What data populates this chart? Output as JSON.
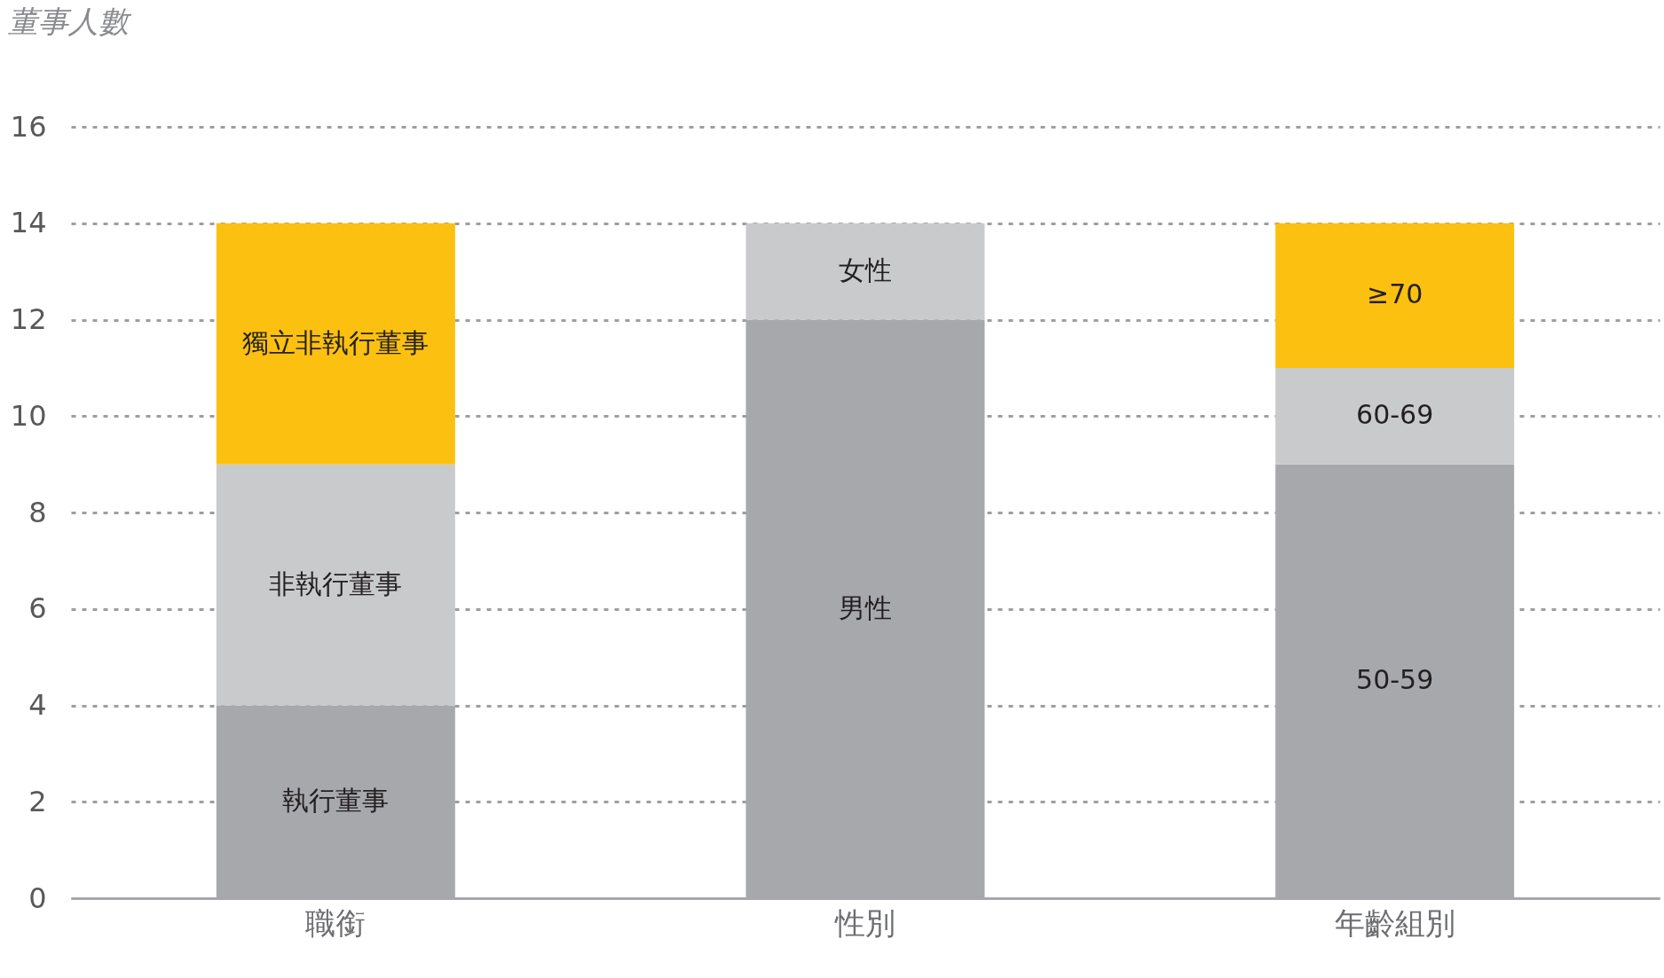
{
  "chart_data": {
    "type": "bar",
    "stacked": true,
    "ylabel": "董事人數",
    "categories": [
      "職銜",
      "性別",
      "年齡組別"
    ],
    "series": [
      {
        "name": "執行董事",
        "color": "#a7a8ab",
        "values": [
          4,
          null,
          null
        ]
      },
      {
        "name": "非執行董事",
        "color": "#c9cacc",
        "values": [
          5,
          null,
          null
        ]
      },
      {
        "name": "獨立非執行董事",
        "color": "#fcc010",
        "values": [
          5,
          null,
          null
        ]
      },
      {
        "name": "男性",
        "color": "#a7a8ab",
        "values": [
          null,
          12,
          null
        ]
      },
      {
        "name": "女性",
        "color": "#c9cacc",
        "values": [
          null,
          2,
          null
        ]
      },
      {
        "name": "50-59",
        "color": "#a7a8ab",
        "values": [
          null,
          null,
          9
        ]
      },
      {
        "name": "60-69",
        "color": "#c9cacc",
        "values": [
          null,
          null,
          2
        ]
      },
      {
        "name": "≥70",
        "color": "#fcc010",
        "values": [
          null,
          null,
          3
        ]
      }
    ],
    "ylim": [
      0,
      16
    ],
    "yticks": [
      0,
      2,
      4,
      6,
      8,
      10,
      12,
      14,
      16
    ],
    "grid": "y",
    "legend": false
  }
}
